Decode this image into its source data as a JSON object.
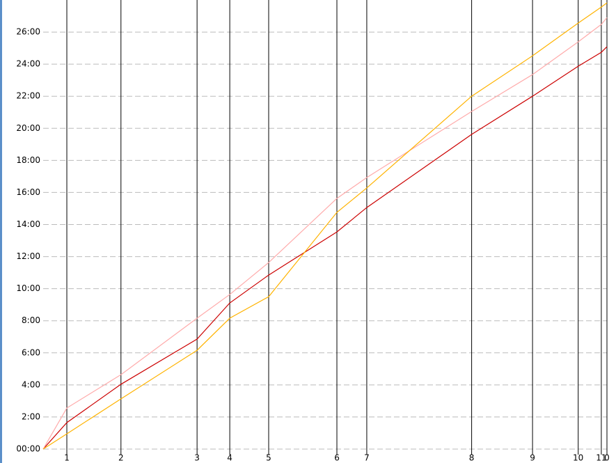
{
  "chart_data": {
    "type": "line",
    "x": [
      0,
      4.2,
      13.8,
      27.3,
      33.1,
      40,
      52.1,
      57.4,
      76,
      86.8,
      94.9,
      99,
      100
    ],
    "series": [
      {
        "color": "#cc0000",
        "values": [
          0,
          1.65,
          4.04,
          6.86,
          9.11,
          10.85,
          13.54,
          15.06,
          19.62,
          22.0,
          23.87,
          24.74,
          25.09
        ]
      },
      {
        "color": "#ffaaaa",
        "values": [
          0,
          2.56,
          4.64,
          8.16,
          9.64,
          11.63,
          15.63,
          16.93,
          21.05,
          23.35,
          25.39,
          26.48,
          26.9
        ]
      },
      {
        "color": "#ffb300",
        "values": [
          0,
          0.95,
          3.13,
          6.16,
          8.16,
          9.5,
          14.76,
          16.28,
          22.0,
          24.52,
          26.56,
          27.56,
          27.82
        ]
      }
    ],
    "xlim": [
      0,
      100
    ],
    "xticks": [
      {
        "value": 4.2,
        "label": "1"
      },
      {
        "value": 13.8,
        "label": "2"
      },
      {
        "value": 27.3,
        "label": "3"
      },
      {
        "value": 33.1,
        "label": "4"
      },
      {
        "value": 40,
        "label": "5"
      },
      {
        "value": 52.1,
        "label": "6"
      },
      {
        "value": 57.4,
        "label": "7"
      },
      {
        "value": 76,
        "label": "8"
      },
      {
        "value": 86.8,
        "label": "9"
      },
      {
        "value": 94.9,
        "label": "10"
      },
      {
        "value": 99,
        "label": "11"
      },
      {
        "value": 100,
        "label": "0"
      }
    ],
    "ylim": [
      0,
      28
    ],
    "yticks": [
      {
        "value": 0,
        "label": "00:00"
      },
      {
        "value": 2,
        "label": "2:00"
      },
      {
        "value": 4,
        "label": "4:00"
      },
      {
        "value": 6,
        "label": "6:00"
      },
      {
        "value": 8,
        "label": "8:00"
      },
      {
        "value": 10,
        "label": "10:00"
      },
      {
        "value": 12,
        "label": "12:00"
      },
      {
        "value": 14,
        "label": "14:00"
      },
      {
        "value": 16,
        "label": "16:00"
      },
      {
        "value": 18,
        "label": "18:00"
      },
      {
        "value": 20,
        "label": "20:00"
      },
      {
        "value": 22,
        "label": "22:00"
      },
      {
        "value": 24,
        "label": "24:00"
      },
      {
        "value": 26,
        "label": "26:00"
      }
    ],
    "grid": true
  }
}
